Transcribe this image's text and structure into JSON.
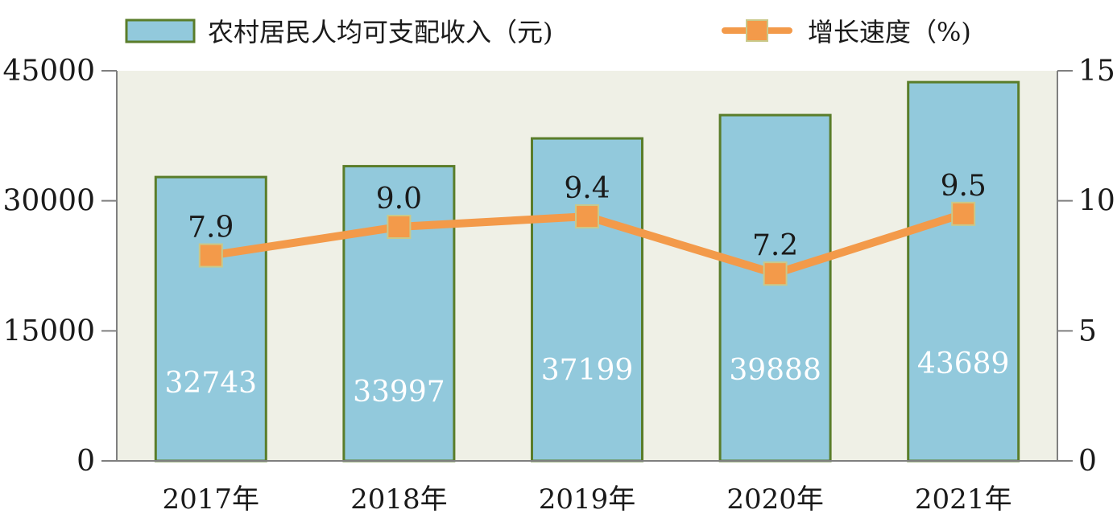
{
  "chart_data": {
    "type": "bar",
    "categories": [
      "2017年",
      "2018年",
      "2019年",
      "2020年",
      "2021年"
    ],
    "series": [
      {
        "name": "农村居民人均可支配收入（元)",
        "type": "bar",
        "axis": "left",
        "values": [
          32743,
          33997,
          37199,
          39888,
          43689
        ]
      },
      {
        "name": "增长速度（%)",
        "type": "line",
        "axis": "right",
        "values": [
          7.9,
          9.0,
          9.4,
          7.2,
          9.5
        ]
      }
    ],
    "y_left": {
      "ylim": [
        0,
        45000
      ],
      "ticks": [
        "0",
        "15000",
        "30000",
        "45000"
      ]
    },
    "y_right": {
      "ylim": [
        0,
        15
      ],
      "ticks": [
        "0",
        "5",
        "10",
        "15"
      ]
    },
    "bar_labels": [
      "32743",
      "33997",
      "37199",
      "39888",
      "43689"
    ],
    "line_labels": [
      "7.9",
      "9.0",
      "9.4",
      "7.2",
      "9.5"
    ],
    "legend_position": "top",
    "colors": {
      "bar_fill": "#92c9dc",
      "bar_stroke": "#5a7d2a",
      "line": "#f39a4a",
      "marker": "#f39a4a",
      "marker_stroke": "#c9c98a",
      "plot_bg": "#eff0e6",
      "axis": "#7f7f7f",
      "text": "#1a1a1a",
      "bar_label_text": "#ffffff"
    }
  }
}
